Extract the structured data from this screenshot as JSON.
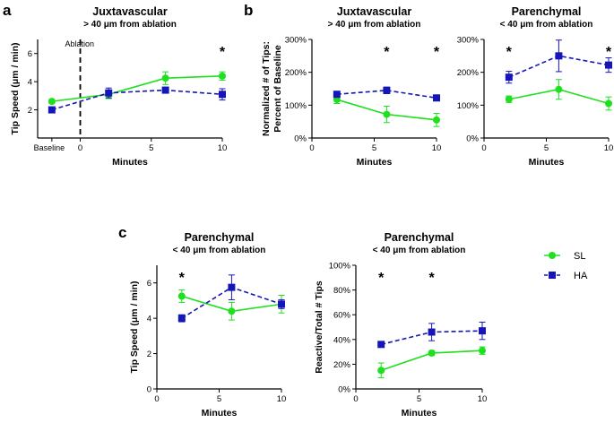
{
  "panel_letters": {
    "a": "a",
    "b": "b",
    "c": "c"
  },
  "colors": {
    "sl": "#1ee01e",
    "ha": "#1616b8",
    "axis": "#000000"
  },
  "legend": {
    "sl": "SL",
    "ha": "HA"
  },
  "chart_data": [
    {
      "id": "a",
      "type": "line",
      "title": "Juxtavascular",
      "subtitle": "> 40 μm from ablation",
      "xlabel": "Minutes",
      "ylabel": "Tip Speed (μm / min)",
      "xlim": [
        -3,
        10
      ],
      "ylim": [
        0,
        7
      ],
      "xticks": [
        0,
        5,
        10
      ],
      "yticks": [
        2,
        4,
        6
      ],
      "baseline_label": "Baseline",
      "ablation_label": "Ablation",
      "ablation_x": 0,
      "series": [
        {
          "name": "SL",
          "x": [
            -2,
            2,
            6,
            10
          ],
          "y": [
            2.6,
            3.1,
            4.25,
            4.4
          ],
          "err": [
            0.15,
            0.3,
            0.45,
            0.3
          ]
        },
        {
          "name": "HA",
          "x": [
            -2,
            2,
            6,
            10
          ],
          "y": [
            2.0,
            3.2,
            3.4,
            3.1
          ],
          "err": [
            0.15,
            0.35,
            0.2,
            0.4
          ]
        }
      ],
      "stars": [
        10
      ]
    },
    {
      "id": "b1",
      "type": "line",
      "title": "Juxtavascular",
      "subtitle": "> 40 μm from ablation",
      "xlabel": "Minutes",
      "ylabel": "Normalized # of Tips:",
      "ylabel2": "Percent of Baseline",
      "xlim": [
        0,
        10
      ],
      "ylim": [
        0,
        300
      ],
      "xticks": [
        0,
        5,
        10
      ],
      "yticks": [
        0,
        100,
        200,
        300
      ],
      "ytick_suffix": "%",
      "series": [
        {
          "name": "SL",
          "x": [
            2,
            6,
            10
          ],
          "y": [
            117,
            72,
            55
          ],
          "err": [
            12,
            25,
            20
          ]
        },
        {
          "name": "HA",
          "x": [
            2,
            6,
            10
          ],
          "y": [
            133,
            145,
            122
          ],
          "err": [
            8,
            10,
            8
          ]
        }
      ],
      "stars": [
        6,
        10
      ]
    },
    {
      "id": "b2",
      "type": "line",
      "title": "Parenchymal",
      "subtitle": "< 40 μm from ablation",
      "xlabel": "Minutes",
      "ylabel": "",
      "xlim": [
        0,
        10
      ],
      "ylim": [
        0,
        300
      ],
      "xticks": [
        0,
        5,
        10
      ],
      "yticks": [
        0,
        100,
        200,
        300
      ],
      "ytick_suffix": "%",
      "series": [
        {
          "name": "SL",
          "x": [
            2,
            6,
            10
          ],
          "y": [
            118,
            148,
            105
          ],
          "err": [
            10,
            30,
            20
          ]
        },
        {
          "name": "HA",
          "x": [
            2,
            6,
            10
          ],
          "y": [
            185,
            250,
            222
          ],
          "err": [
            18,
            48,
            22
          ]
        }
      ],
      "stars": [
        2,
        10
      ]
    },
    {
      "id": "c1",
      "type": "line",
      "title": "Parenchymal",
      "subtitle": "< 40 μm from ablation",
      "xlabel": "Minutes",
      "ylabel": "Tip Speed (μm / min)",
      "xlim": [
        0,
        10
      ],
      "ylim": [
        0,
        7
      ],
      "xticks": [
        0,
        5,
        10
      ],
      "yticks": [
        0,
        2,
        4,
        6
      ],
      "series": [
        {
          "name": "SL",
          "x": [
            2,
            6,
            10
          ],
          "y": [
            5.25,
            4.4,
            4.8
          ],
          "err": [
            0.35,
            0.5,
            0.5
          ]
        },
        {
          "name": "HA",
          "x": [
            2,
            6,
            10
          ],
          "y": [
            4.0,
            5.75,
            4.8
          ],
          "err": [
            0.2,
            0.7,
            0.25
          ]
        }
      ],
      "stars": [
        2
      ]
    },
    {
      "id": "c2",
      "type": "line",
      "title": "Parenchymal",
      "subtitle": "< 40 μm from ablation",
      "xlabel": "Minutes",
      "ylabel": "Reactive/Total # Tips",
      "xlim": [
        0,
        10
      ],
      "ylim": [
        0,
        100
      ],
      "xticks": [
        0,
        5,
        10
      ],
      "yticks": [
        0,
        20,
        40,
        60,
        80,
        100
      ],
      "ytick_suffix": "%",
      "series": [
        {
          "name": "SL",
          "x": [
            2,
            6,
            10
          ],
          "y": [
            15,
            29,
            31
          ],
          "err": [
            6,
            2,
            3
          ]
        },
        {
          "name": "HA",
          "x": [
            2,
            6,
            10
          ],
          "y": [
            36,
            46,
            47
          ],
          "err": [
            2,
            7,
            7
          ]
        }
      ],
      "stars": [
        2,
        6
      ]
    }
  ]
}
